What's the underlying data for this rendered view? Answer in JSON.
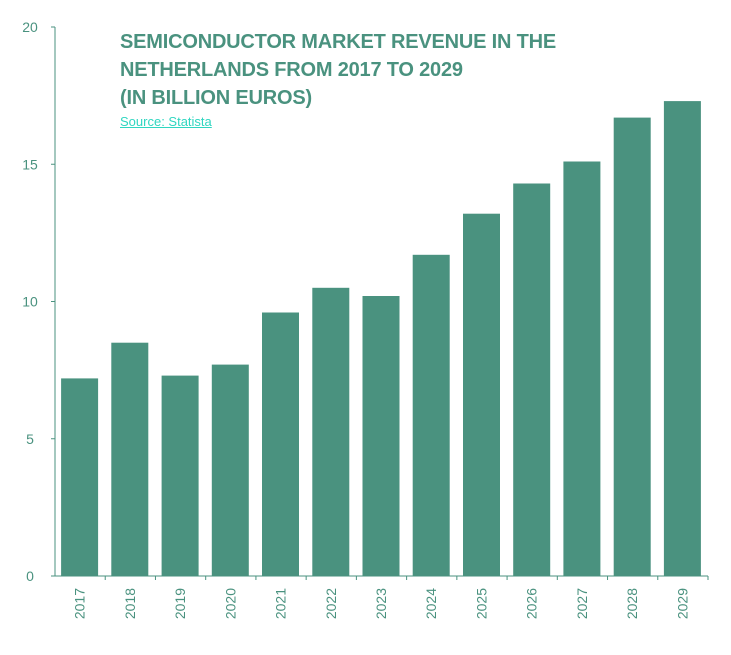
{
  "chart_data": {
    "type": "bar",
    "title_lines": [
      "SEMICONDUCTOR MARKET REVENUE IN THE",
      "NETHERLANDS FROM 2017 TO 2029",
      "(IN BILLION EUROS)"
    ],
    "source_label": "Source: Statista",
    "categories": [
      "2017",
      "2018",
      "2019",
      "2020",
      "2021",
      "2022",
      "2023",
      "2024",
      "2025",
      "2026",
      "2027",
      "2028",
      "2029"
    ],
    "values": [
      7.2,
      8.5,
      7.3,
      7.7,
      9.6,
      10.5,
      10.2,
      11.7,
      13.2,
      14.3,
      15.1,
      16.7,
      17.3
    ],
    "yticks": [
      "0",
      "5",
      "10",
      "15",
      "20"
    ],
    "ylim": [
      0,
      20
    ],
    "xlabel": "",
    "ylabel": "",
    "grid": false,
    "colors": {
      "bar": "#4a927f",
      "axis": "#4a927f",
      "title": "#4a927f",
      "source": "#2fd6c0"
    }
  }
}
